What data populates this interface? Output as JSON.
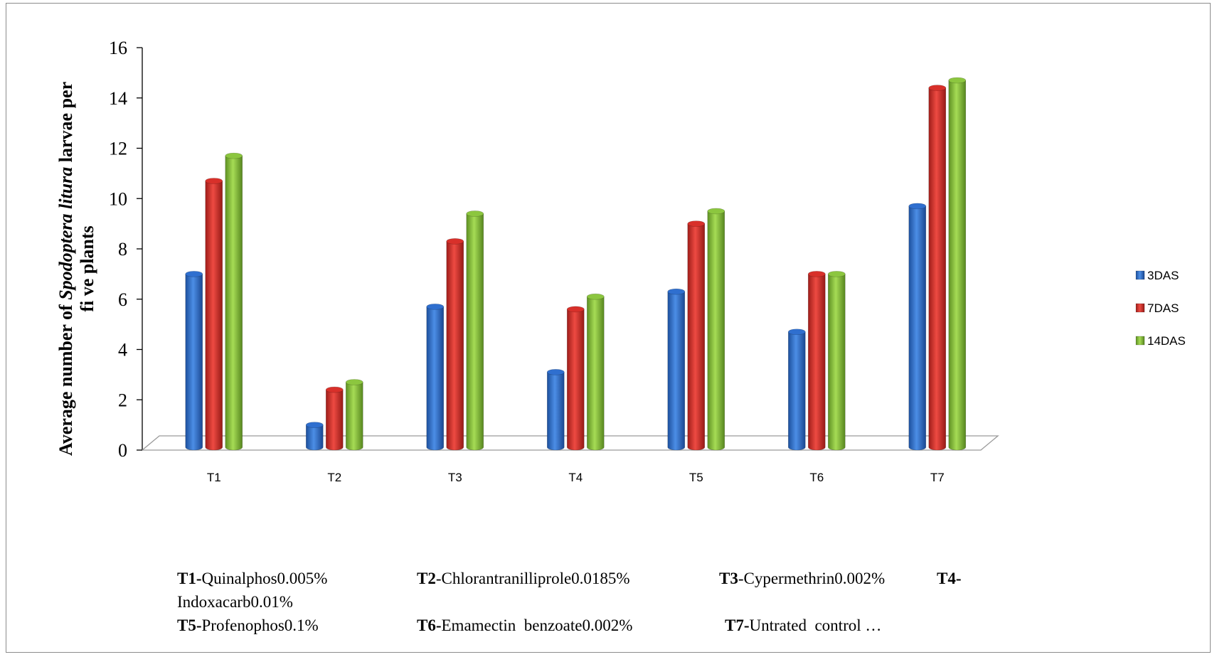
{
  "chart_data": {
    "type": "bar",
    "categories": [
      "T1",
      "T2",
      "T3",
      "T4",
      "T5",
      "T6",
      "T7"
    ],
    "series": [
      {
        "name": "3DAS",
        "color": "#2f6fcf",
        "values": [
          7.0,
          1.0,
          5.7,
          3.1,
          6.3,
          4.7,
          9.7
        ]
      },
      {
        "name": "7DAS",
        "color": "#d8302a",
        "values": [
          10.7,
          2.4,
          8.3,
          5.6,
          9.0,
          7.0,
          14.4
        ]
      },
      {
        "name": "14DAS",
        "color": "#8cc63f",
        "values": [
          11.7,
          2.7,
          9.4,
          6.1,
          9.5,
          7.0,
          14.7
        ]
      }
    ],
    "ylabel_parts": {
      "line1_prefix": "Average number of ",
      "line1_italic": "Spodoptera litura",
      "line1_suffix": " larvae per",
      "line2": "fi ve plants"
    },
    "ylim": [
      0,
      16
    ],
    "yticks": [
      "0",
      "2",
      "4",
      "6",
      "8",
      "10",
      "12",
      "14",
      "16"
    ],
    "legend_position": "right",
    "grid": false
  },
  "footnote": {
    "row1": [
      {
        "code": "T1-",
        "name": "Quinalphos0.005%"
      },
      {
        "code": "T2",
        "name": "-Chlorantranilliprole0.0185%"
      },
      {
        "code": "T3",
        "name": "-Cypermethrin0.002%"
      },
      {
        "code": "T4-",
        "name": ""
      }
    ],
    "row2": [
      {
        "code": "",
        "name": "Indoxacarb0.01%"
      }
    ],
    "row3": [
      {
        "code": "T5-",
        "name": "Profenophos0.1%"
      },
      {
        "code": "T6-",
        "name": "Emamectin  benzoate0.002%"
      },
      {
        "code": "T7-",
        "name": "Untrated  control …"
      }
    ]
  }
}
